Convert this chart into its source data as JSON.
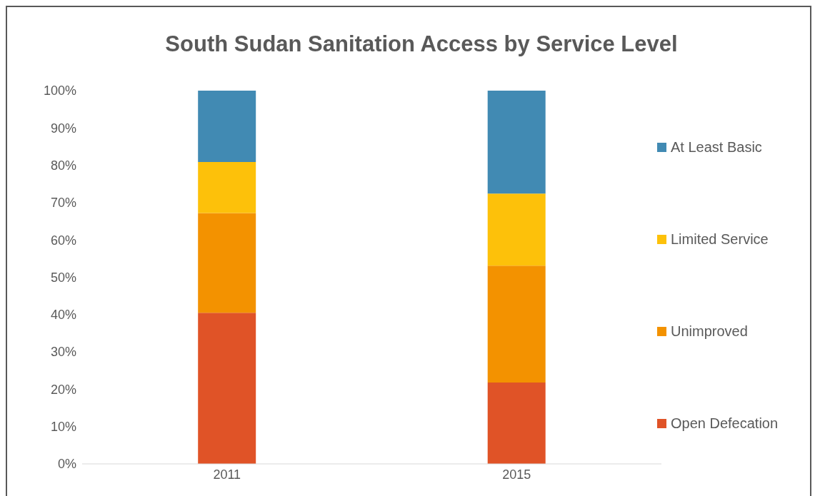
{
  "chart_data": {
    "type": "bar",
    "title": "South Sudan Sanitation Access by Service Level",
    "stacked": true,
    "categories": [
      "2011",
      "2015"
    ],
    "series": [
      {
        "name": "Open Defecation",
        "color": "#e05327",
        "values": [
          40.5,
          21.8
        ]
      },
      {
        "name": "Unimproved",
        "color": "#f39200",
        "values": [
          26.7,
          31.3
        ]
      },
      {
        "name": "Limited Service",
        "color": "#fdc10a",
        "values": [
          13.7,
          19.3
        ]
      },
      {
        "name": "At Least Basic",
        "color": "#418ab3",
        "values": [
          19.1,
          27.6
        ]
      }
    ],
    "ylim": [
      0,
      100
    ],
    "yticks": [
      {
        "value": 0,
        "label": "0%"
      },
      {
        "value": 10,
        "label": "10%"
      },
      {
        "value": 20,
        "label": "20%"
      },
      {
        "value": 30,
        "label": "30%"
      },
      {
        "value": 40,
        "label": "40%"
      },
      {
        "value": 50,
        "label": "50%"
      },
      {
        "value": 60,
        "label": "60%"
      },
      {
        "value": 70,
        "label": "70%"
      },
      {
        "value": 80,
        "label": "80%"
      },
      {
        "value": 90,
        "label": "90%"
      },
      {
        "value": 100,
        "label": "100%"
      }
    ],
    "grid": false,
    "legend": "right"
  }
}
